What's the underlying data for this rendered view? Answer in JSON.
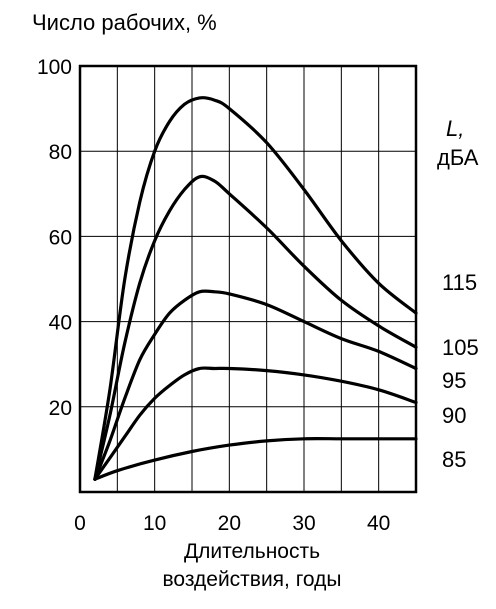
{
  "chart_data": {
    "type": "line",
    "title": "",
    "ylabel": "Число рабочих, %",
    "xlabel_lines": [
      "Длительность",
      "воздействия, годы"
    ],
    "legend_title": "L,",
    "legend_unit": "дБА",
    "xlim": [
      0,
      45
    ],
    "ylim": [
      0,
      100
    ],
    "x_ticks": [
      0,
      10,
      20,
      30,
      40
    ],
    "y_ticks": [
      20,
      40,
      60,
      80,
      100
    ],
    "x_grid": [
      5,
      10,
      15,
      20,
      25,
      30,
      35,
      40
    ],
    "y_grid": [
      20,
      40,
      60,
      80
    ],
    "grid": true,
    "line_color": "#000000",
    "series": [
      {
        "name": "115",
        "points": [
          [
            2,
            3
          ],
          [
            4,
            24
          ],
          [
            6,
            50
          ],
          [
            8,
            68
          ],
          [
            10,
            80
          ],
          [
            12,
            87
          ],
          [
            14,
            91
          ],
          [
            16,
            92.5
          ],
          [
            18,
            92
          ],
          [
            20,
            90
          ],
          [
            25,
            82
          ],
          [
            30,
            71
          ],
          [
            35,
            59
          ],
          [
            40,
            49
          ],
          [
            45,
            42
          ]
        ]
      },
      {
        "name": "105",
        "points": [
          [
            2,
            3
          ],
          [
            4,
            18
          ],
          [
            6,
            35
          ],
          [
            8,
            49
          ],
          [
            10,
            59
          ],
          [
            12,
            66
          ],
          [
            14,
            71
          ],
          [
            16,
            74
          ],
          [
            18,
            73
          ],
          [
            20,
            70
          ],
          [
            25,
            62
          ],
          [
            30,
            53
          ],
          [
            35,
            45
          ],
          [
            40,
            39
          ],
          [
            45,
            34
          ]
        ]
      },
      {
        "name": "95",
        "points": [
          [
            2,
            3
          ],
          [
            4,
            12
          ],
          [
            6,
            22
          ],
          [
            8,
            31
          ],
          [
            10,
            37
          ],
          [
            12,
            42
          ],
          [
            14,
            45
          ],
          [
            16,
            47
          ],
          [
            18,
            47
          ],
          [
            20,
            46.5
          ],
          [
            25,
            44
          ],
          [
            30,
            40
          ],
          [
            35,
            36
          ],
          [
            40,
            33
          ],
          [
            45,
            29
          ]
        ]
      },
      {
        "name": "90",
        "points": [
          [
            2,
            3
          ],
          [
            4,
            8
          ],
          [
            6,
            13
          ],
          [
            8,
            18
          ],
          [
            10,
            22
          ],
          [
            12,
            25
          ],
          [
            14,
            27.5
          ],
          [
            16,
            29
          ],
          [
            18,
            29
          ],
          [
            20,
            29
          ],
          [
            25,
            28.5
          ],
          [
            30,
            27.5
          ],
          [
            35,
            26
          ],
          [
            40,
            24
          ],
          [
            45,
            21
          ]
        ]
      },
      {
        "name": "85",
        "points": [
          [
            2,
            3
          ],
          [
            5,
            5
          ],
          [
            10,
            7.5
          ],
          [
            15,
            9.5
          ],
          [
            20,
            11
          ],
          [
            25,
            12
          ],
          [
            30,
            12.5
          ],
          [
            35,
            12.5
          ],
          [
            40,
            12.5
          ],
          [
            45,
            12.5
          ]
        ]
      }
    ]
  }
}
